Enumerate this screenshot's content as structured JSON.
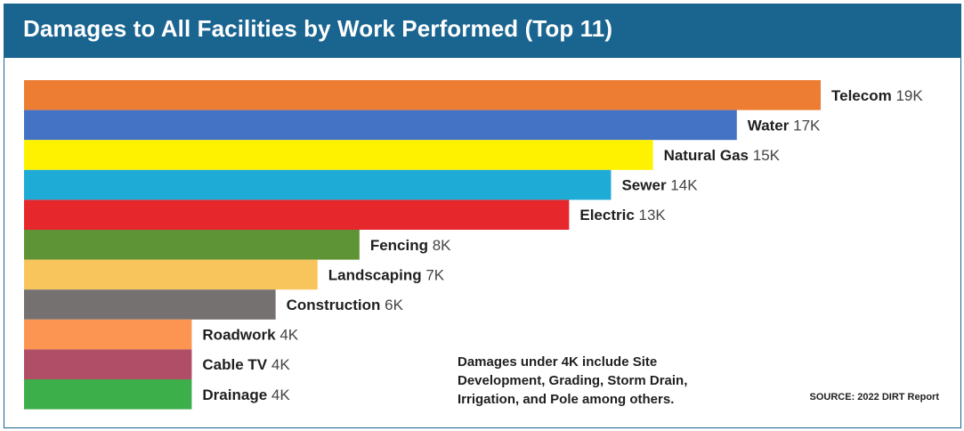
{
  "header": {
    "title": "Damages to All Facilities by Work Performed (Top 11)"
  },
  "chart_data": {
    "type": "bar",
    "orientation": "horizontal",
    "title": "Damages to All Facilities by Work Performed (Top 11)",
    "categories": [
      "Telecom",
      "Water",
      "Natural Gas",
      "Sewer",
      "Electric",
      "Fencing",
      "Landscaping",
      "Construction",
      "Roadwork",
      "Cable TV",
      "Drainage"
    ],
    "values": [
      19,
      17,
      15,
      14,
      13,
      8,
      7,
      6,
      4,
      4,
      4
    ],
    "value_labels": [
      "19K",
      "17K",
      "15K",
      "14K",
      "13K",
      "8K",
      "7K",
      "6K",
      "4K",
      "4K",
      "4K"
    ],
    "colors": [
      "#ec7d32",
      "#4472c4",
      "#fff200",
      "#1eacd6",
      "#e6282d",
      "#5e9436",
      "#f8c55c",
      "#767171",
      "#fc9552",
      "#b04e68",
      "#3daf4a"
    ],
    "xlim": [
      0,
      19
    ],
    "grid": false,
    "legend": "none"
  },
  "note": "Damages under 4K include Site Development, Grading, Storm Drain, Irrigation, and Pole among others.",
  "source": "SOURCE: 2022 DIRT Report"
}
